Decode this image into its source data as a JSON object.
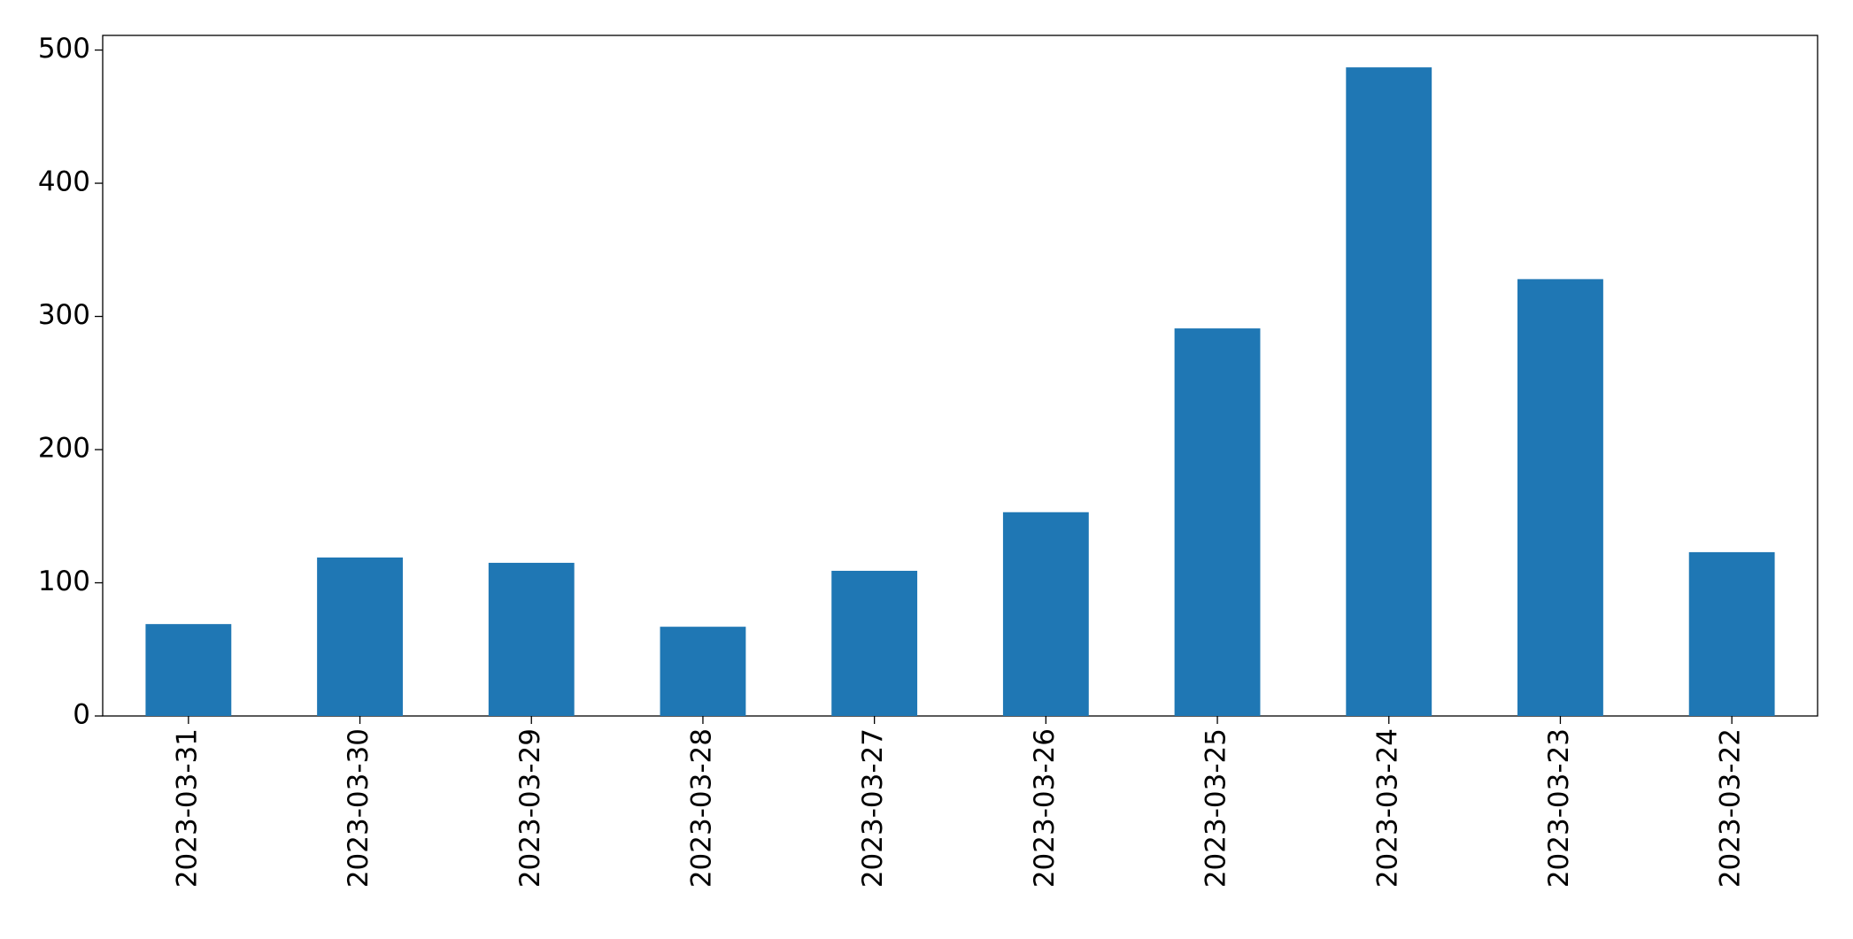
{
  "chart_data": {
    "type": "bar",
    "categories": [
      "2023-03-31",
      "2023-03-30",
      "2023-03-29",
      "2023-03-28",
      "2023-03-27",
      "2023-03-26",
      "2023-03-25",
      "2023-03-24",
      "2023-03-23",
      "2023-03-22"
    ],
    "values": [
      69,
      119,
      115,
      67,
      109,
      153,
      291,
      487,
      328,
      123
    ],
    "color": "#1f77b4",
    "ylim": [
      0,
      511
    ],
    "yticks": [
      0,
      100,
      200,
      300,
      400,
      500
    ],
    "grid": false
  }
}
